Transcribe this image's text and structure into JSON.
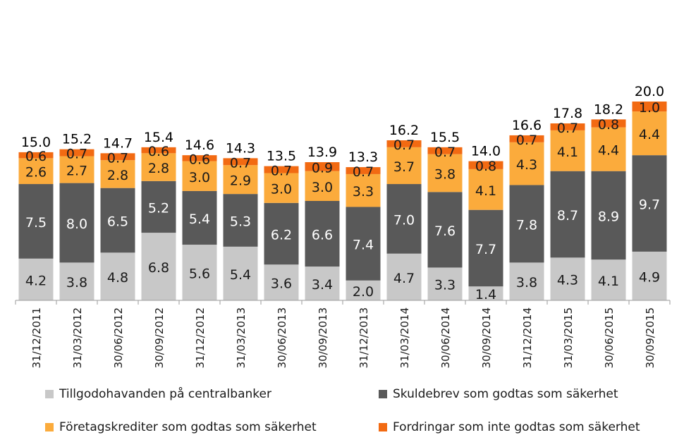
{
  "chart_data": {
    "type": "bar",
    "stacked": true,
    "categories": [
      "31/12/2011",
      "31/03/2012",
      "30/06/2012",
      "30/09/2012",
      "31/12/2012",
      "31/03/2013",
      "30/06/2013",
      "30/09/2013",
      "31/12/2013",
      "31/03/2014",
      "30/06/2014",
      "30/09/2014",
      "31/12/2014",
      "31/03/2015",
      "30/06/2015",
      "30/09/2015"
    ],
    "series": [
      {
        "name": "Tillgodohavanden på centralbanker",
        "color": "#c8c8c8",
        "values": [
          4.2,
          3.8,
          4.8,
          6.8,
          5.6,
          5.4,
          3.6,
          3.4,
          2.0,
          4.7,
          3.3,
          1.4,
          3.8,
          4.3,
          4.1,
          4.9
        ],
        "labels": [
          "4.2",
          "3.8",
          "4.8",
          "6.8",
          "5.6",
          "5.4",
          "3.6",
          "3.4",
          "2.0",
          "4.7",
          "3.3",
          "1.4",
          "3.8",
          "4.3",
          "4.1",
          "4.9"
        ]
      },
      {
        "name": "Skuldebrev som godtas som säkerhet",
        "color": "#595959",
        "values": [
          7.5,
          8.0,
          6.5,
          5.2,
          5.4,
          5.3,
          6.2,
          6.6,
          7.4,
          7.0,
          7.6,
          7.7,
          7.8,
          8.7,
          8.9,
          9.7
        ],
        "labels": [
          "7.5",
          "8.0",
          "6.5",
          "5.2",
          "5.4",
          "5.3",
          "6.2",
          "6.6",
          "7.4",
          "7.0",
          "7.6",
          "7.7",
          "7.8",
          "8.7",
          "8.9",
          "9.7"
        ]
      },
      {
        "name": "Företagskrediter som godtas som säkerhet",
        "color": "#fbab3c",
        "values": [
          2.6,
          2.7,
          2.8,
          2.8,
          3.0,
          2.9,
          3.0,
          3.0,
          3.3,
          3.7,
          3.8,
          4.1,
          4.3,
          4.1,
          4.4,
          4.4
        ],
        "labels": [
          "2.6",
          "2.7",
          "2.8",
          "2.8",
          "3.0",
          "2.9",
          "3.0",
          "3.0",
          "3.3",
          "3.7",
          "3.8",
          "4.1",
          "4.3",
          "4.1",
          "4.4",
          "4.4"
        ]
      },
      {
        "name": "Fordringar som inte godtas som säkerhet",
        "color": "#f26a12",
        "values": [
          0.6,
          0.7,
          0.7,
          0.6,
          0.6,
          0.7,
          0.7,
          0.9,
          0.7,
          0.7,
          0.7,
          0.8,
          0.7,
          0.7,
          0.8,
          1.0
        ],
        "labels": [
          "0.6",
          "0.7",
          "0.7",
          "0.6",
          "0.6",
          "0.7",
          "0.7",
          "0.9",
          "0.7",
          "0.7",
          "0.7",
          "0.8",
          "0.7",
          "0.7",
          "0.8",
          "1.0"
        ]
      }
    ],
    "totals": [
      "15.0",
      "15.2",
      "14.7",
      "15.4",
      "14.6",
      "14.3",
      "13.5",
      "13.9",
      "13.3",
      "16.2",
      "15.5",
      "14.0",
      "16.6",
      "17.8",
      "18.2",
      "20.0"
    ],
    "ylim": [
      0,
      20.5
    ],
    "title": "",
    "xlabel": "",
    "ylabel": "",
    "grid": false,
    "legend_placement": "bottom"
  }
}
